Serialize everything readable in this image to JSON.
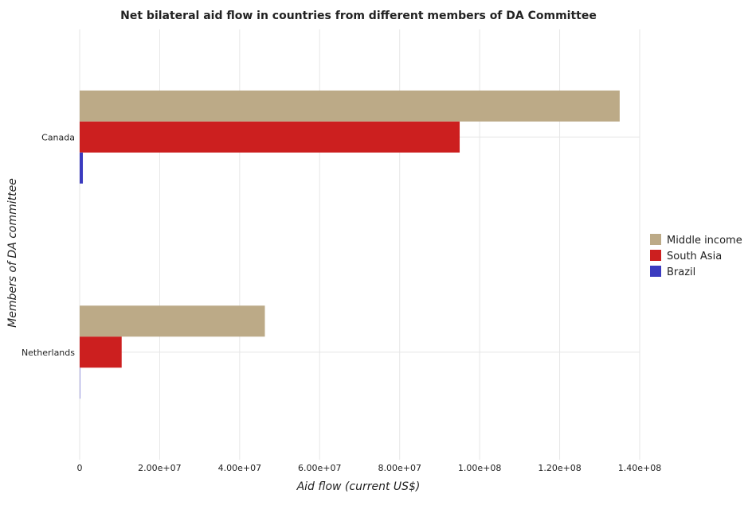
{
  "chart_data": {
    "type": "bar",
    "orientation": "horizontal",
    "title": "Net bilateral aid flow in countries from different members of DA Committee",
    "xlabel": "Aid flow (current US$)",
    "ylabel": "Members of DA committee",
    "categories": [
      "Canada",
      "Netherlands"
    ],
    "series": [
      {
        "name": "Middle income",
        "color": "#bcaa87",
        "values": [
          135000000,
          46300000
        ]
      },
      {
        "name": "South Asia",
        "color": "#cc1f1f",
        "values": [
          95000000,
          10500000
        ]
      },
      {
        "name": "Brazil",
        "color": "#3b3bbf",
        "values": [
          800000,
          60000
        ]
      }
    ],
    "xlim": [
      0,
      140000000
    ],
    "xticks": [
      0,
      20000000,
      40000000,
      60000000,
      80000000,
      100000000,
      120000000,
      140000000
    ],
    "xtick_labels": [
      "0",
      "2.00e+07",
      "4.00e+07",
      "6.00e+07",
      "8.00e+07",
      "1.00e+08",
      "1.20e+08",
      "1.40e+08"
    ],
    "grid": true,
    "legend_position": "right"
  }
}
